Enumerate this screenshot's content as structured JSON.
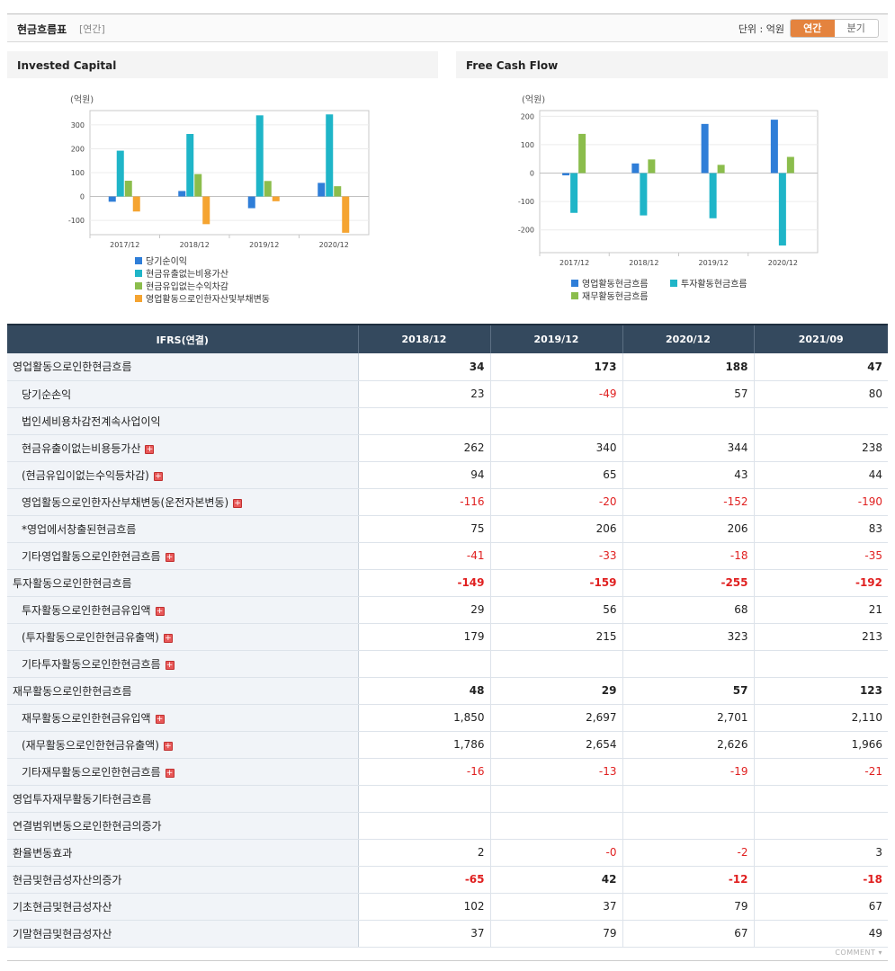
{
  "header": {
    "title": "현금흐름표",
    "subtitle": "[연간]",
    "unit": "단위 : 억원",
    "toggle": [
      "연간",
      "분기"
    ],
    "active": 0
  },
  "charts": {
    "left_title": "Invested Capital",
    "right_title": "Free Cash Flow"
  },
  "chart_data": [
    {
      "type": "bar",
      "title": "Invested Capital",
      "ylabel": "(억원)",
      "categories": [
        "2017/12",
        "2018/12",
        "2019/12",
        "2020/12"
      ],
      "ylim": [
        -160,
        360
      ],
      "yticks": [
        300,
        200,
        100,
        0,
        -100
      ],
      "grid": true,
      "legend_position": "bottom",
      "series": [
        {
          "name": "당기순이익",
          "color": "#2f7ed8",
          "values": [
            -22,
            23,
            -49,
            57
          ]
        },
        {
          "name": "현금유출없는비용가산",
          "color": "#1fb5c8",
          "values": [
            192,
            262,
            340,
            344
          ]
        },
        {
          "name": "현금유입없는수익차감",
          "color": "#8bbd4c",
          "values": [
            66,
            94,
            65,
            43
          ]
        },
        {
          "name": "영업활동으로인한자산및부채변동",
          "color": "#f5a431",
          "values": [
            -63,
            -116,
            -20,
            -152
          ]
        }
      ]
    },
    {
      "type": "bar",
      "title": "Free Cash Flow",
      "ylabel": "(억원)",
      "categories": [
        "2017/12",
        "2018/12",
        "2019/12",
        "2020/12"
      ],
      "ylim": [
        -280,
        220
      ],
      "yticks": [
        200,
        100,
        0,
        -100,
        -200
      ],
      "grid": true,
      "legend_position": "bottom",
      "series": [
        {
          "name": "영업활동현금흐름",
          "color": "#2f7ed8",
          "values": [
            -8,
            34,
            173,
            188
          ]
        },
        {
          "name": "투자활동현금흐름",
          "color": "#1fb5c8",
          "values": [
            -140,
            -149,
            -159,
            -255
          ]
        },
        {
          "name": "재무활동현금흐름",
          "color": "#8bbd4c",
          "values": [
            138,
            48,
            29,
            57
          ]
        }
      ]
    }
  ],
  "table": {
    "header": [
      "IFRS(연결)",
      "2018/12",
      "2019/12",
      "2020/12",
      "2021/09"
    ],
    "rows": [
      {
        "label": "영업활동으로인한현금흐름",
        "values": [
          "34",
          "173",
          "188",
          "47"
        ],
        "bold": true,
        "sub": false,
        "plus": false
      },
      {
        "label": "당기순손익",
        "values": [
          "23",
          "-49",
          "57",
          "80"
        ],
        "bold": false,
        "sub": true,
        "plus": false
      },
      {
        "label": "법인세비용차감전계속사업이익",
        "values": [
          "",
          "",
          "",
          ""
        ],
        "bold": false,
        "sub": true,
        "plus": false
      },
      {
        "label": "현금유출이없는비용등가산",
        "values": [
          "262",
          "340",
          "344",
          "238"
        ],
        "bold": false,
        "sub": true,
        "plus": true
      },
      {
        "label": "(현금유입이없는수익등차감)",
        "values": [
          "94",
          "65",
          "43",
          "44"
        ],
        "bold": false,
        "sub": true,
        "plus": true
      },
      {
        "label": "영업활동으로인한자산부채변동(운전자본변동)",
        "values": [
          "-116",
          "-20",
          "-152",
          "-190"
        ],
        "bold": false,
        "sub": true,
        "plus": true
      },
      {
        "label": "*영업에서창출된현금흐름",
        "values": [
          "75",
          "206",
          "206",
          "83"
        ],
        "bold": false,
        "sub": true,
        "plus": false
      },
      {
        "label": "기타영업활동으로인한현금흐름",
        "values": [
          "-41",
          "-33",
          "-18",
          "-35"
        ],
        "bold": false,
        "sub": true,
        "plus": true
      },
      {
        "label": "투자활동으로인한현금흐름",
        "values": [
          "-149",
          "-159",
          "-255",
          "-192"
        ],
        "bold": true,
        "sub": false,
        "plus": false
      },
      {
        "label": "투자활동으로인한현금유입액",
        "values": [
          "29",
          "56",
          "68",
          "21"
        ],
        "bold": false,
        "sub": true,
        "plus": true
      },
      {
        "label": "(투자활동으로인한현금유출액)",
        "values": [
          "179",
          "215",
          "323",
          "213"
        ],
        "bold": false,
        "sub": true,
        "plus": true
      },
      {
        "label": "기타투자활동으로인한현금흐름",
        "values": [
          "",
          "",
          "",
          ""
        ],
        "bold": false,
        "sub": true,
        "plus": true
      },
      {
        "label": "재무활동으로인한현금흐름",
        "values": [
          "48",
          "29",
          "57",
          "123"
        ],
        "bold": true,
        "sub": false,
        "plus": false
      },
      {
        "label": "재무활동으로인한현금유입액",
        "values": [
          "1,850",
          "2,697",
          "2,701",
          "2,110"
        ],
        "bold": false,
        "sub": true,
        "plus": true
      },
      {
        "label": "(재무활동으로인한현금유출액)",
        "values": [
          "1,786",
          "2,654",
          "2,626",
          "1,966"
        ],
        "bold": false,
        "sub": true,
        "plus": true
      },
      {
        "label": "기타재무활동으로인한현금흐름",
        "values": [
          "-16",
          "-13",
          "-19",
          "-21"
        ],
        "bold": false,
        "sub": true,
        "plus": true
      },
      {
        "label": "영업투자재무활동기타현금흐름",
        "values": [
          "",
          "",
          "",
          ""
        ],
        "bold": false,
        "sub": false,
        "plus": false
      },
      {
        "label": "연결범위변동으로인한현금의증가",
        "values": [
          "",
          "",
          "",
          ""
        ],
        "bold": false,
        "sub": false,
        "plus": false
      },
      {
        "label": "환율변동효과",
        "values": [
          "2",
          "-0",
          "-2",
          "3"
        ],
        "bold": false,
        "sub": false,
        "plus": false
      },
      {
        "label": "현금및현금성자산의증가",
        "values": [
          "-65",
          "42",
          "-12",
          "-18"
        ],
        "bold": true,
        "sub": false,
        "plus": false
      },
      {
        "label": "기초현금및현금성자산",
        "values": [
          "102",
          "37",
          "79",
          "67"
        ],
        "bold": false,
        "sub": false,
        "plus": false
      },
      {
        "label": "기말현금및현금성자산",
        "values": [
          "37",
          "79",
          "67",
          "49"
        ],
        "bold": false,
        "sub": false,
        "plus": false
      }
    ]
  },
  "footer": {
    "comment": "COMMENT"
  }
}
